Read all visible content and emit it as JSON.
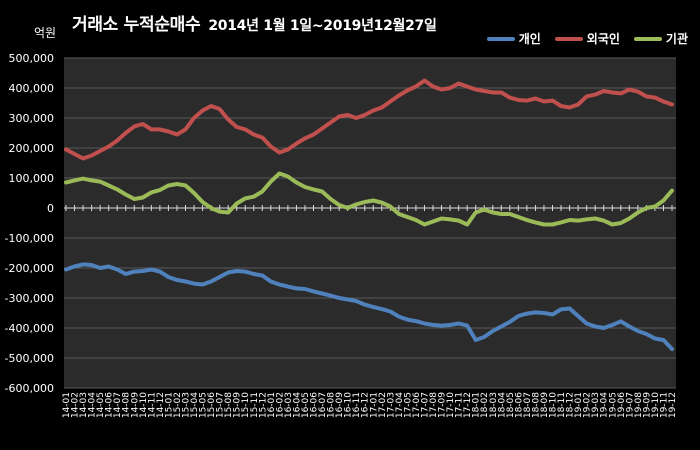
{
  "chart_data": {
    "type": "line",
    "title": "거래소 누적순매수",
    "subtitle": "2014년 1월 1일~2019년12월27일",
    "ylabel": "억원",
    "ylim": [
      -600000,
      500000
    ],
    "yticks": [
      500000,
      400000,
      300000,
      200000,
      100000,
      0,
      -100000,
      -200000,
      -300000,
      -400000,
      -500000,
      -600000
    ],
    "ytick_labels": [
      "500,000",
      "400,000",
      "300,000",
      "200,000",
      "100,000",
      "0",
      "-100,000",
      "-200,000",
      "-300,000",
      "-400,000",
      "-500,000",
      "-600,000"
    ],
    "legend_position": "top-right",
    "grid": true,
    "background": "#2b2b2b",
    "x_start": "14-01",
    "x_end": "19-12",
    "series": [
      {
        "name": "개인",
        "color": "#4f81bd",
        "points": [
          [
            "14-01",
            -205000
          ],
          [
            "14-02",
            -195000
          ],
          [
            "14-03",
            -188000
          ],
          [
            "14-04",
            -190000
          ],
          [
            "14-05",
            -200000
          ],
          [
            "14-06",
            -195000
          ],
          [
            "14-07",
            -205000
          ],
          [
            "14-08",
            -220000
          ],
          [
            "14-09",
            -212000
          ],
          [
            "14-10",
            -210000
          ],
          [
            "14-11",
            -205000
          ],
          [
            "14-12",
            -212000
          ],
          [
            "15-01",
            -230000
          ],
          [
            "15-02",
            -240000
          ],
          [
            "15-03",
            -245000
          ],
          [
            "15-04",
            -252000
          ],
          [
            "15-05",
            -255000
          ],
          [
            "15-06",
            -245000
          ],
          [
            "15-07",
            -230000
          ],
          [
            "15-08",
            -215000
          ],
          [
            "15-09",
            -210000
          ],
          [
            "15-10",
            -212000
          ],
          [
            "15-11",
            -220000
          ],
          [
            "15-12",
            -225000
          ],
          [
            "16-01",
            -245000
          ],
          [
            "16-02",
            -255000
          ],
          [
            "16-03",
            -262000
          ],
          [
            "16-04",
            -268000
          ],
          [
            "16-05",
            -270000
          ],
          [
            "16-06",
            -278000
          ],
          [
            "16-07",
            -285000
          ],
          [
            "16-08",
            -292000
          ],
          [
            "16-09",
            -300000
          ],
          [
            "16-10",
            -305000
          ],
          [
            "16-11",
            -310000
          ],
          [
            "16-12",
            -322000
          ],
          [
            "17-01",
            -330000
          ],
          [
            "17-02",
            -337000
          ],
          [
            "17-03",
            -345000
          ],
          [
            "17-04",
            -362000
          ],
          [
            "17-05",
            -372000
          ],
          [
            "17-06",
            -377000
          ],
          [
            "17-07",
            -385000
          ],
          [
            "17-08",
            -390000
          ],
          [
            "17-09",
            -392000
          ],
          [
            "17-10",
            -390000
          ],
          [
            "17-11",
            -385000
          ],
          [
            "17-12",
            -392000
          ],
          [
            "18-01",
            -440000
          ],
          [
            "18-02",
            -430000
          ],
          [
            "18-03",
            -410000
          ],
          [
            "18-04",
            -395000
          ],
          [
            "18-05",
            -380000
          ],
          [
            "18-06",
            -360000
          ],
          [
            "18-07",
            -352000
          ],
          [
            "18-08",
            -348000
          ],
          [
            "18-09",
            -350000
          ],
          [
            "18-10",
            -355000
          ],
          [
            "18-11",
            -338000
          ],
          [
            "18-12",
            -335000
          ],
          [
            "19-01",
            -360000
          ],
          [
            "19-02",
            -385000
          ],
          [
            "19-03",
            -395000
          ],
          [
            "19-04",
            -400000
          ],
          [
            "19-05",
            -390000
          ],
          [
            "19-06",
            -378000
          ],
          [
            "19-07",
            -395000
          ],
          [
            "19-08",
            -410000
          ],
          [
            "19-09",
            -420000
          ],
          [
            "19-10",
            -435000
          ],
          [
            "19-11",
            -440000
          ],
          [
            "19-12",
            -470000
          ]
        ]
      },
      {
        "name": "외국인",
        "color": "#c0504d",
        "points": [
          [
            "14-01",
            195000
          ],
          [
            "14-02",
            180000
          ],
          [
            "14-03",
            165000
          ],
          [
            "14-04",
            175000
          ],
          [
            "14-05",
            190000
          ],
          [
            "14-06",
            205000
          ],
          [
            "14-07",
            225000
          ],
          [
            "14-08",
            250000
          ],
          [
            "14-09",
            272000
          ],
          [
            "14-10",
            280000
          ],
          [
            "14-11",
            262000
          ],
          [
            "14-12",
            262000
          ],
          [
            "15-01",
            255000
          ],
          [
            "15-02",
            245000
          ],
          [
            "15-03",
            262000
          ],
          [
            "15-04",
            300000
          ],
          [
            "15-05",
            325000
          ],
          [
            "15-06",
            340000
          ],
          [
            "15-07",
            330000
          ],
          [
            "15-08",
            295000
          ],
          [
            "15-09",
            270000
          ],
          [
            "15-10",
            262000
          ],
          [
            "15-11",
            245000
          ],
          [
            "15-12",
            235000
          ],
          [
            "16-01",
            205000
          ],
          [
            "16-02",
            185000
          ],
          [
            "16-03",
            195000
          ],
          [
            "16-04",
            215000
          ],
          [
            "16-05",
            232000
          ],
          [
            "16-06",
            245000
          ],
          [
            "16-07",
            265000
          ],
          [
            "16-08",
            285000
          ],
          [
            "16-09",
            305000
          ],
          [
            "16-10",
            310000
          ],
          [
            "16-11",
            300000
          ],
          [
            "16-12",
            310000
          ],
          [
            "17-01",
            325000
          ],
          [
            "17-02",
            335000
          ],
          [
            "17-03",
            355000
          ],
          [
            "17-04",
            375000
          ],
          [
            "17-05",
            392000
          ],
          [
            "17-06",
            405000
          ],
          [
            "17-07",
            425000
          ],
          [
            "17-08",
            405000
          ],
          [
            "17-09",
            395000
          ],
          [
            "17-10",
            400000
          ],
          [
            "17-11",
            415000
          ],
          [
            "17-12",
            405000
          ],
          [
            "18-01",
            395000
          ],
          [
            "18-02",
            390000
          ],
          [
            "18-03",
            385000
          ],
          [
            "18-04",
            385000
          ],
          [
            "18-05",
            368000
          ],
          [
            "18-06",
            360000
          ],
          [
            "18-07",
            358000
          ],
          [
            "18-08",
            365000
          ],
          [
            "18-09",
            355000
          ],
          [
            "18-10",
            358000
          ],
          [
            "18-11",
            340000
          ],
          [
            "18-12",
            335000
          ],
          [
            "19-01",
            345000
          ],
          [
            "19-02",
            372000
          ],
          [
            "19-03",
            378000
          ],
          [
            "19-04",
            390000
          ],
          [
            "19-05",
            385000
          ],
          [
            "19-06",
            382000
          ],
          [
            "19-07",
            395000
          ],
          [
            "19-08",
            388000
          ],
          [
            "19-09",
            372000
          ],
          [
            "19-10",
            368000
          ],
          [
            "19-11",
            355000
          ],
          [
            "19-12",
            345000
          ]
        ]
      },
      {
        "name": "기관",
        "color": "#9bbb59",
        "points": [
          [
            "14-01",
            85000
          ],
          [
            "14-02",
            92000
          ],
          [
            "14-03",
            98000
          ],
          [
            "14-04",
            92000
          ],
          [
            "14-05",
            88000
          ],
          [
            "14-06",
            75000
          ],
          [
            "14-07",
            62000
          ],
          [
            "14-08",
            45000
          ],
          [
            "14-09",
            30000
          ],
          [
            "14-10",
            35000
          ],
          [
            "14-11",
            52000
          ],
          [
            "14-12",
            60000
          ],
          [
            "15-01",
            75000
          ],
          [
            "15-02",
            80000
          ],
          [
            "15-03",
            75000
          ],
          [
            "15-04",
            50000
          ],
          [
            "15-05",
            20000
          ],
          [
            "15-06",
            0
          ],
          [
            "15-07",
            -12000
          ],
          [
            "15-08",
            -15000
          ],
          [
            "15-09",
            15000
          ],
          [
            "15-10",
            32000
          ],
          [
            "15-11",
            38000
          ],
          [
            "15-12",
            55000
          ],
          [
            "16-01",
            88000
          ],
          [
            "16-02",
            115000
          ],
          [
            "16-03",
            105000
          ],
          [
            "16-04",
            85000
          ],
          [
            "16-05",
            70000
          ],
          [
            "16-06",
            62000
          ],
          [
            "16-07",
            55000
          ],
          [
            "16-08",
            30000
          ],
          [
            "16-09",
            10000
          ],
          [
            "16-10",
            0
          ],
          [
            "16-11",
            12000
          ],
          [
            "16-12",
            20000
          ],
          [
            "17-01",
            25000
          ],
          [
            "17-02",
            18000
          ],
          [
            "17-03",
            5000
          ],
          [
            "17-04",
            -20000
          ],
          [
            "17-05",
            -30000
          ],
          [
            "17-06",
            -40000
          ],
          [
            "17-07",
            -55000
          ],
          [
            "17-08",
            -45000
          ],
          [
            "17-09",
            -35000
          ],
          [
            "17-10",
            -38000
          ],
          [
            "17-11",
            -42000
          ],
          [
            "17-12",
            -55000
          ],
          [
            "18-01",
            -15000
          ],
          [
            "18-02",
            -5000
          ],
          [
            "18-03",
            -15000
          ],
          [
            "18-04",
            -20000
          ],
          [
            "18-05",
            -20000
          ],
          [
            "18-06",
            -30000
          ],
          [
            "18-07",
            -40000
          ],
          [
            "18-08",
            -48000
          ],
          [
            "18-09",
            -55000
          ],
          [
            "18-10",
            -55000
          ],
          [
            "18-11",
            -48000
          ],
          [
            "18-12",
            -40000
          ],
          [
            "19-01",
            -42000
          ],
          [
            "19-02",
            -38000
          ],
          [
            "19-03",
            -35000
          ],
          [
            "19-04",
            -42000
          ],
          [
            "19-05",
            -55000
          ],
          [
            "19-06",
            -50000
          ],
          [
            "19-07",
            -35000
          ],
          [
            "19-08",
            -15000
          ],
          [
            "19-09",
            0
          ],
          [
            "19-10",
            5000
          ],
          [
            "19-11",
            25000
          ],
          [
            "19-12",
            58000
          ]
        ]
      }
    ]
  }
}
